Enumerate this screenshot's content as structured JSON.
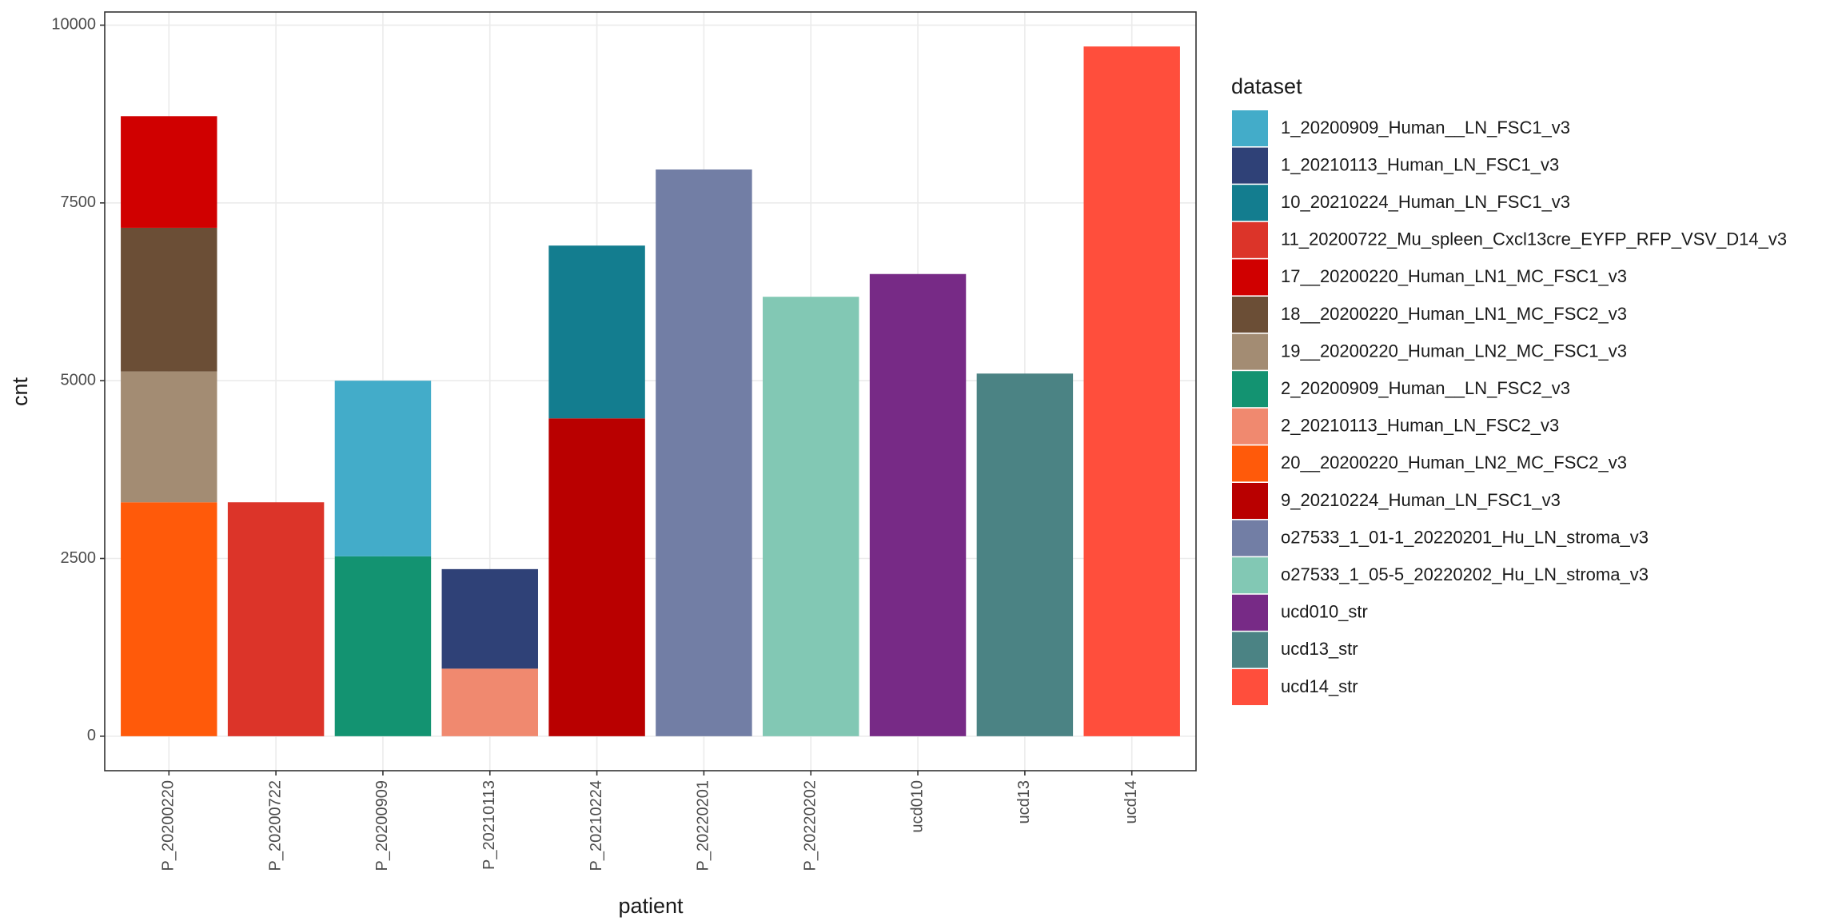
{
  "chart_data": {
    "type": "stacked_bar",
    "x_label": "patient",
    "y_label": "cnt",
    "legend_title": "dataset",
    "categories": [
      "P_20200220",
      "P_20200722",
      "P_20200909",
      "P_20210113",
      "P_20210224",
      "P_20220201",
      "P_20220202",
      "ucd010",
      "ucd13",
      "ucd14"
    ],
    "ylim": [
      -485,
      10185
    ],
    "yticks": [
      0,
      2500,
      5000,
      7500,
      10000
    ],
    "grid": true,
    "legend": "right",
    "series": [
      {
        "name": "1_20200909_Human__LN_FSC1_v3",
        "color": "#43acc9",
        "values": [
          null,
          null,
          2470,
          null,
          null,
          null,
          null,
          null,
          null,
          null
        ]
      },
      {
        "name": "1_20210113_Human_LN_FSC1_v3",
        "color": "#2f4177",
        "values": [
          null,
          null,
          null,
          1400,
          null,
          null,
          null,
          null,
          null,
          null
        ]
      },
      {
        "name": "10_20210224_Human_LN_FSC1_v3",
        "color": "#137d8f",
        "values": [
          null,
          null,
          null,
          null,
          2430,
          null,
          null,
          null,
          null,
          null
        ]
      },
      {
        "name": "11_20200722_Mu_spleen_Cxcl13cre_EYFP_RFP_VSV_D14_v3",
        "color": "#dc3429",
        "values": [
          null,
          3290,
          null,
          null,
          null,
          null,
          null,
          null,
          null,
          null
        ]
      },
      {
        "name": "17__20200220_Human_LN1_MC_FSC1_v3",
        "color": "#d00000",
        "values": [
          1570,
          null,
          null,
          null,
          null,
          null,
          null,
          null,
          null,
          null
        ]
      },
      {
        "name": "18__20200220_Human_LN1_MC_FSC2_v3",
        "color": "#6b4e36",
        "values": [
          2020,
          null,
          null,
          null,
          null,
          null,
          null,
          null,
          null,
          null
        ]
      },
      {
        "name": "19__20200220_Human_LN2_MC_FSC1_v3",
        "color": "#a38c73",
        "values": [
          1840,
          null,
          null,
          null,
          null,
          null,
          null,
          null,
          null,
          null
        ]
      },
      {
        "name": "2_20200909_Human__LN_FSC2_v3",
        "color": "#139371",
        "values": [
          null,
          null,
          2530,
          null,
          null,
          null,
          null,
          null,
          null,
          null
        ]
      },
      {
        "name": "2_20210113_Human_LN_FSC2_v3",
        "color": "#f0896f",
        "values": [
          null,
          null,
          null,
          950,
          null,
          null,
          null,
          null,
          null,
          null
        ]
      },
      {
        "name": "20__20200220_Human_LN2_MC_FSC2_v3",
        "color": "#ff5a0a",
        "values": [
          3290,
          null,
          null,
          null,
          null,
          null,
          null,
          null,
          null,
          null
        ]
      },
      {
        "name": "9_20210224_Human_LN_FSC1_v3",
        "color": "#b90000",
        "values": [
          null,
          null,
          null,
          null,
          4470,
          null,
          null,
          null,
          null,
          null
        ]
      },
      {
        "name": "o27533_1_01-1_20220201_Hu_LN_stroma_v3",
        "color": "#727ea5",
        "values": [
          null,
          null,
          null,
          null,
          null,
          7970,
          null,
          null,
          null,
          null
        ]
      },
      {
        "name": "o27533_1_05-5_20220202_Hu_LN_stroma_v3",
        "color": "#82c8b4",
        "values": [
          null,
          null,
          null,
          null,
          null,
          null,
          6180,
          null,
          null,
          null
        ]
      },
      {
        "name": "ucd010_str",
        "color": "#772a86",
        "values": [
          null,
          null,
          null,
          null,
          null,
          null,
          null,
          6500,
          null,
          null
        ]
      },
      {
        "name": "ucd13_str",
        "color": "#4b8384",
        "values": [
          null,
          null,
          null,
          null,
          null,
          null,
          null,
          null,
          5100,
          null
        ]
      },
      {
        "name": "ucd14_str",
        "color": "#ff4e3c",
        "values": [
          null,
          null,
          null,
          null,
          null,
          null,
          null,
          null,
          null,
          9700
        ]
      }
    ]
  }
}
